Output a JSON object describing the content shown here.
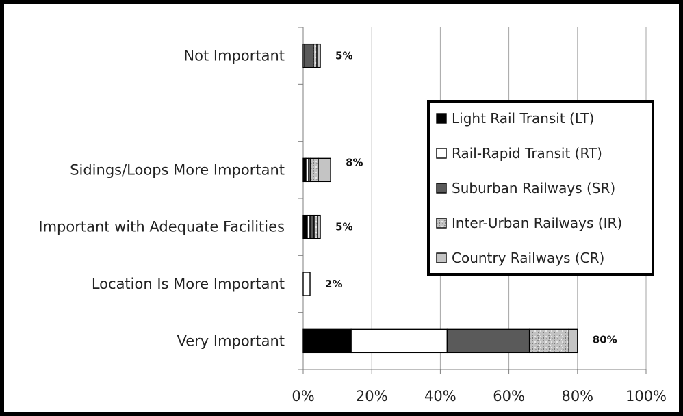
{
  "chart_data": {
    "type": "bar",
    "orientation": "horizontal",
    "stacked": true,
    "categories": [
      "Very Important",
      "Location Is More Important",
      "Important with Adequate Facilities",
      "Sidings/Loops More Important",
      "",
      "Not Important"
    ],
    "series": [
      {
        "name": "Light Rail Transit (LT)",
        "color": "#000000",
        "pattern": "solid",
        "values": [
          14,
          0,
          1.2,
          0.8,
          0,
          0
        ]
      },
      {
        "name": "Rail-Rapid Transit (RT)",
        "color": "#ffffff",
        "pattern": "solid",
        "values": [
          28,
          2,
          0.8,
          0.8,
          0,
          0.4
        ]
      },
      {
        "name": "Suburban Railways (SR)",
        "color": "#5a5a5a",
        "pattern": "solid",
        "values": [
          24,
          0,
          1.2,
          0.6,
          0,
          2.6
        ]
      },
      {
        "name": "Inter-Urban Railways (IR)",
        "color": "#bdbdbd",
        "pattern": "speckled",
        "values": [
          11.5,
          0,
          1.0,
          2.2,
          0,
          1.0
        ]
      },
      {
        "name": "Country Railways (CR)",
        "color": "#c4c4c4",
        "pattern": "solid",
        "values": [
          2.5,
          0,
          0.8,
          3.6,
          0,
          1.0
        ]
      }
    ],
    "totals": [
      "80%",
      "2%",
      "5%",
      "8%",
      "",
      "5%"
    ],
    "xlim": [
      0,
      100
    ],
    "xticks": [
      "0%",
      "20%",
      "40%",
      "60%",
      "80%",
      "100%"
    ],
    "title": "",
    "xlabel": "",
    "ylabel": "",
    "grid": "vertical",
    "legend_position": "center-right"
  }
}
